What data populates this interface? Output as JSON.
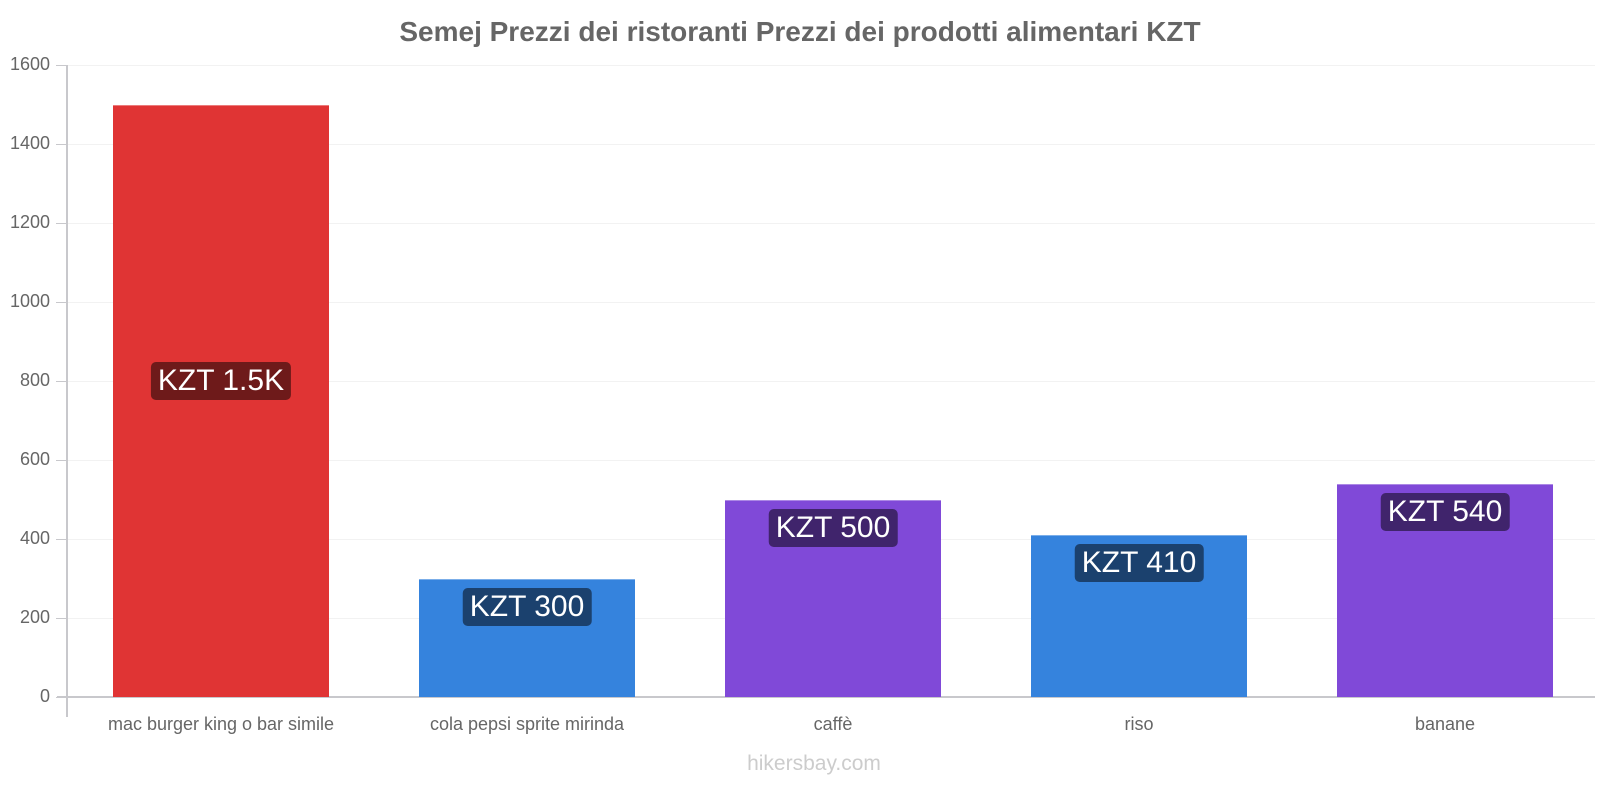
{
  "title": "Semej Prezzi dei ristoranti Prezzi dei prodotti alimentari KZT",
  "watermark": "hikersbay.com",
  "y_ticks": [
    "0",
    "200",
    "400",
    "600",
    "800",
    "1000",
    "1200",
    "1400",
    "1600"
  ],
  "bars": [
    {
      "label": "mac burger king o bar simile",
      "value": 1500,
      "badge": "KZT 1.5K",
      "color": "#e03434",
      "badge_color": "#6e1a1a"
    },
    {
      "label": "cola pepsi sprite mirinda",
      "value": 300,
      "badge": "KZT 300",
      "color": "#3583dd",
      "badge_color": "#1b416e"
    },
    {
      "label": "caffè",
      "value": 500,
      "badge": "KZT 500",
      "color": "#8049d8",
      "badge_color": "#40246c"
    },
    {
      "label": "riso",
      "value": 410,
      "badge": "KZT 410",
      "color": "#3583dd",
      "badge_color": "#1b416e"
    },
    {
      "label": "banane",
      "value": 540,
      "badge": "KZT 540",
      "color": "#8049d8",
      "badge_color": "#40246c"
    }
  ],
  "chart_data": {
    "type": "bar",
    "title": "Semej Prezzi dei ristoranti Prezzi dei prodotti alimentari KZT",
    "categories": [
      "mac burger king o bar simile",
      "cola pepsi sprite mirinda",
      "caffè",
      "riso",
      "banane"
    ],
    "values": [
      1500,
      300,
      500,
      410,
      540
    ],
    "data_labels": [
      "KZT 1.5K",
      "KZT 300",
      "KZT 500",
      "KZT 410",
      "KZT 540"
    ],
    "colors": [
      "#e03434",
      "#3583dd",
      "#8049d8",
      "#3583dd",
      "#8049d8"
    ],
    "xlabel": "",
    "ylabel": "",
    "ylim": [
      0,
      1600
    ],
    "yticks": [
      0,
      200,
      400,
      600,
      800,
      1000,
      1200,
      1400,
      1600
    ],
    "grid": true,
    "legend": "none"
  }
}
